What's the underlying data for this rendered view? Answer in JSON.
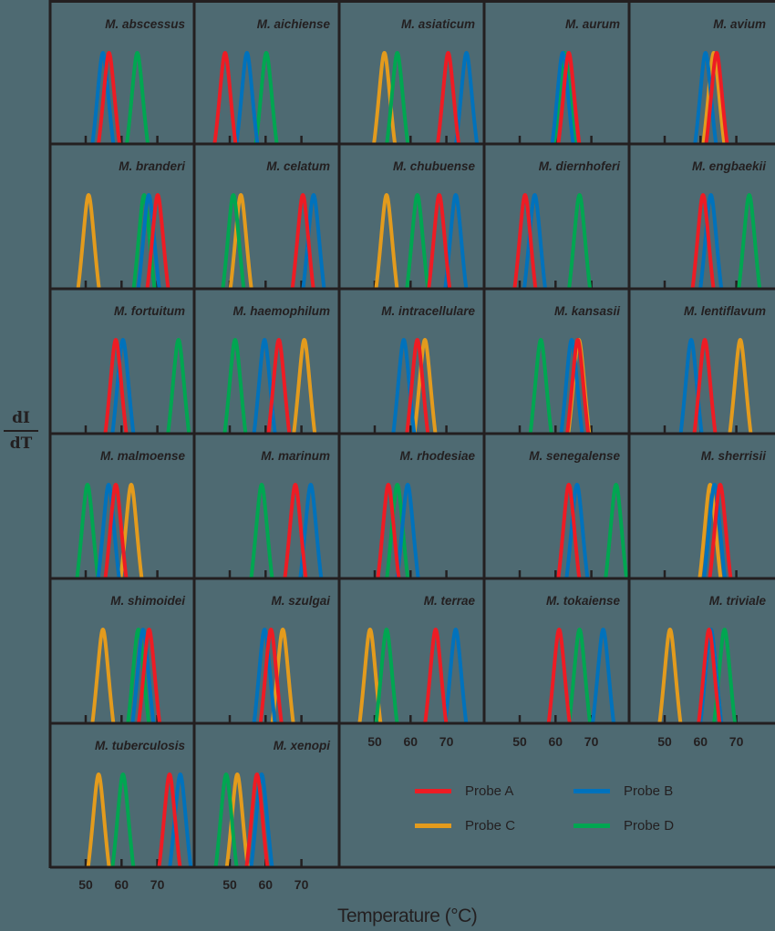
{
  "chart_data": {
    "type": "line",
    "title": "",
    "xlabel": "Temperature (°C)",
    "ylabel": "dI/dT",
    "xticks": [
      50,
      60,
      70
    ],
    "xlim": [
      40,
      80
    ],
    "layout": {
      "rows": 6,
      "cols": 5,
      "legend_position": "bottom-right panel area"
    },
    "legend": [
      {
        "name": "Probe A",
        "key": "A",
        "color": "#ed1c24"
      },
      {
        "name": "Probe B",
        "key": "B",
        "color": "#0072bc"
      },
      {
        "name": "Probe C",
        "key": "C",
        "color": "#e39b1d"
      },
      {
        "name": "Probe D",
        "key": "D",
        "color": "#00a651"
      }
    ],
    "panels": [
      {
        "species": "M. abscessus",
        "peaks": {
          "B": 54.8,
          "A": 56.5,
          "D": 64.4
        }
      },
      {
        "species": "M. aichiense",
        "peaks": {
          "A": 48.7,
          "B": 54.8,
          "D": 60.2
        }
      },
      {
        "species": "M. asiaticum",
        "peaks": {
          "C": 52.7,
          "D": 56.3,
          "A": 70.5,
          "B": 75.6
        }
      },
      {
        "species": "M. aurum",
        "peaks": {
          "B": 62.0,
          "D": 62.5,
          "A": 63.7
        }
      },
      {
        "species": "M. avium",
        "peaks": {
          "B": 61.4,
          "C": 63.7,
          "A": 64.5
        }
      },
      {
        "species": "M. branderi",
        "peaks": {
          "C": 50.8,
          "D": 66.3,
          "B": 67.6,
          "A": 70.1
        }
      },
      {
        "species": "M. celatum",
        "peaks": {
          "D": 51.0,
          "C": 53.1,
          "A": 70.4,
          "B": 73.4
        }
      },
      {
        "species": "M. chubuense",
        "peaks": {
          "C": 53.3,
          "D": 61.9,
          "A": 68.0,
          "B": 72.6
        }
      },
      {
        "species": "M. diernhoferi",
        "peaks": {
          "A": 51.5,
          "B": 54.2,
          "D": 66.7
        }
      },
      {
        "species": "M. engbaekii",
        "peaks": {
          "A": 60.7,
          "B": 62.9,
          "D": 73.6
        }
      },
      {
        "species": "M. fortuitum",
        "peaks": {
          "A": 58.4,
          "B": 60.4,
          "D": 75.9
        }
      },
      {
        "species": "M. haemophilum",
        "peaks": {
          "D": 51.5,
          "B": 59.7,
          "A": 63.7,
          "C": 70.8
        }
      },
      {
        "species": "M. intracellulare",
        "peaks": {
          "B": 58.1,
          "A": 61.9,
          "C": 64.0
        }
      },
      {
        "species": "M. kansasii",
        "peaks": {
          "D": 55.9,
          "B": 64.5,
          "A": 66.2,
          "C": 66.5
        }
      },
      {
        "species": "M. lentiflavum",
        "peaks": {
          "B": 57.4,
          "A": 61.2,
          "C": 71.1
        }
      },
      {
        "species": "M. malmoense",
        "peaks": {
          "D": 50.5,
          "B": 56.4,
          "A": 58.4,
          "C": 62.7
        }
      },
      {
        "species": "M. marinum",
        "peaks": {
          "D": 58.9,
          "A": 68.3,
          "B": 72.6
        }
      },
      {
        "species": "M. rhodesiae",
        "peaks": {
          "A": 53.8,
          "D": 56.3,
          "B": 59.2
        }
      },
      {
        "species": "M. senegalense",
        "peaks": {
          "A": 63.7,
          "B": 66.0,
          "D": 76.9
        }
      },
      {
        "species": "M. sherrisii",
        "peaks": {
          "C": 62.7,
          "B": 63.9,
          "A": 65.5
        }
      },
      {
        "species": "M. shimoidei",
        "peaks": {
          "C": 54.8,
          "D": 64.7,
          "B": 66.0,
          "A": 67.7
        }
      },
      {
        "species": "M. szulgai",
        "peaks": {
          "B": 59.7,
          "A": 61.5,
          "C": 64.8
        }
      },
      {
        "species": "M. terrae",
        "peaks": {
          "C": 48.7,
          "D": 53.3,
          "A": 67.0,
          "B": 72.6
        }
      },
      {
        "species": "M. tokaiense",
        "peaks": {
          "A": 61.0,
          "D": 66.7,
          "B": 73.3
        }
      },
      {
        "species": "M. triviale",
        "peaks": {
          "C": 51.5,
          "A": 62.4,
          "B": 62.9,
          "D": 66.7
        }
      },
      {
        "species": "M. tuberculosis",
        "peaks": {
          "C": 53.6,
          "D": 60.4,
          "A": 73.4,
          "B": 76.4
        }
      },
      {
        "species": "M. xenopi",
        "peaks": {
          "D": 49.0,
          "C": 52.1,
          "A": 57.6,
          "B": 58.9
        }
      }
    ]
  },
  "axis": {
    "ylabel_top": "dI",
    "ylabel_bottom": "dT",
    "xlabel": "Temperature (°C)"
  },
  "legend": {
    "items": [
      {
        "label": "Probe A",
        "color": "#ed1c24"
      },
      {
        "label": "Probe B",
        "color": "#0072bc"
      },
      {
        "label": "Probe C",
        "color": "#e39b1d"
      },
      {
        "label": "Probe D",
        "color": "#00a651"
      }
    ]
  },
  "colors": {
    "background": "#4e6a72",
    "frame": "#231f20"
  }
}
